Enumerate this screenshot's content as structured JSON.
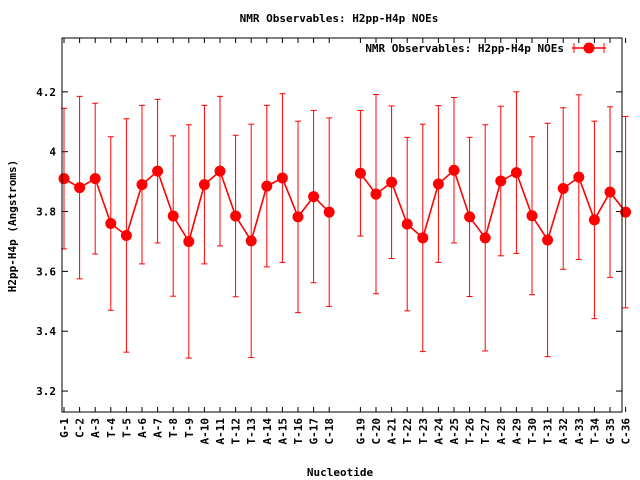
{
  "chart_data": {
    "type": "line",
    "title": "NMR Observables: H2pp-H4p NOEs",
    "xlabel": "Nucleotide",
    "ylabel": "H2pp-H4p (Angstroms)",
    "ylim": [
      3.13,
      4.38
    ],
    "yticks": [
      3.2,
      3.4,
      3.6,
      3.8,
      4,
      4.2
    ],
    "ytick_labels": [
      "3.2",
      "3.4",
      "3.6",
      "3.8",
      "4",
      "4.2"
    ],
    "legend": {
      "label": "NMR Observables: H2pp-H4p NOEs",
      "placement": "top-right"
    },
    "colors": {
      "series": "#ff0000",
      "axis": "#000000",
      "background": "#ffffff"
    },
    "segments": [
      {
        "categories": [
          "G-1",
          "C-2",
          "A-3",
          "T-4",
          "T-5",
          "A-6",
          "A-7",
          "T-8",
          "T-9",
          "A-10",
          "A-11",
          "T-12",
          "T-13",
          "A-14",
          "A-15",
          "T-16",
          "G-17",
          "C-18"
        ],
        "values": [
          3.91,
          3.88,
          3.91,
          3.76,
          3.72,
          3.89,
          3.935,
          3.785,
          3.7,
          3.89,
          3.935,
          3.785,
          3.702,
          3.885,
          3.912,
          3.782,
          3.85,
          3.798
        ],
        "errors": [
          0.235,
          0.305,
          0.252,
          0.29,
          0.39,
          0.265,
          0.24,
          0.268,
          0.39,
          0.265,
          0.25,
          0.27,
          0.39,
          0.27,
          0.282,
          0.32,
          0.288,
          0.315
        ]
      },
      {
        "categories": [
          "G-19",
          "C-20",
          "A-21",
          "T-22",
          "T-23",
          "A-24",
          "A-25",
          "T-26",
          "T-27",
          "A-28",
          "A-29",
          "T-30",
          "T-31",
          "A-32",
          "A-33",
          "T-34",
          "G-35",
          "C-36"
        ],
        "values": [
          3.928,
          3.858,
          3.898,
          3.758,
          3.712,
          3.892,
          3.938,
          3.782,
          3.712,
          3.902,
          3.93,
          3.786,
          3.705,
          3.877,
          3.915,
          3.772,
          3.865,
          3.798
        ],
        "errors": [
          0.21,
          0.333,
          0.255,
          0.29,
          0.38,
          0.262,
          0.243,
          0.266,
          0.378,
          0.25,
          0.27,
          0.264,
          0.39,
          0.27,
          0.275,
          0.33,
          0.285,
          0.32
        ]
      }
    ]
  }
}
